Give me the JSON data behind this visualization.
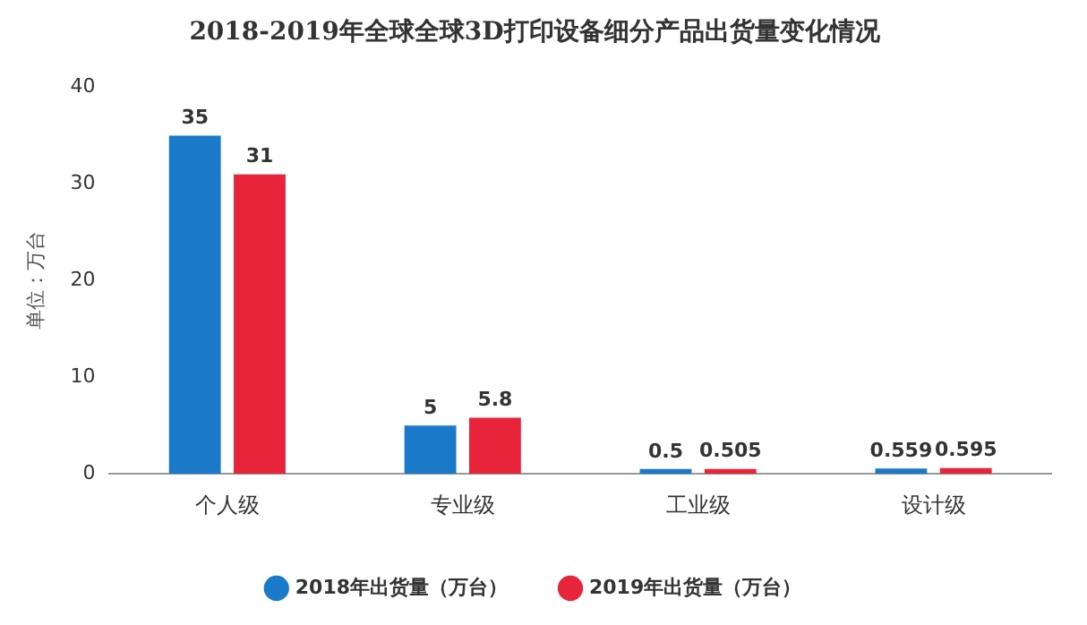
{
  "chart_data": {
    "type": "bar",
    "title": "2018-2019年全球全球3D打印设备细分产品出货量变化情况",
    "ylabel": "单位：万台",
    "categories": [
      "个人级",
      "专业级",
      "工业级",
      "设计级"
    ],
    "series": [
      {
        "name": "2018年出货量（万台）",
        "color": "#1a7ac9",
        "values": [
          35,
          5,
          0.5,
          0.559
        ]
      },
      {
        "name": "2019年出货量（万台）",
        "color": "#e8243a",
        "values": [
          31,
          5.8,
          0.505,
          0.595
        ]
      }
    ],
    "ylim": [
      0,
      40
    ],
    "yticks": [
      0,
      10,
      20,
      30,
      40
    ],
    "grid": false,
    "legend": "bottom",
    "data_labels": true
  }
}
